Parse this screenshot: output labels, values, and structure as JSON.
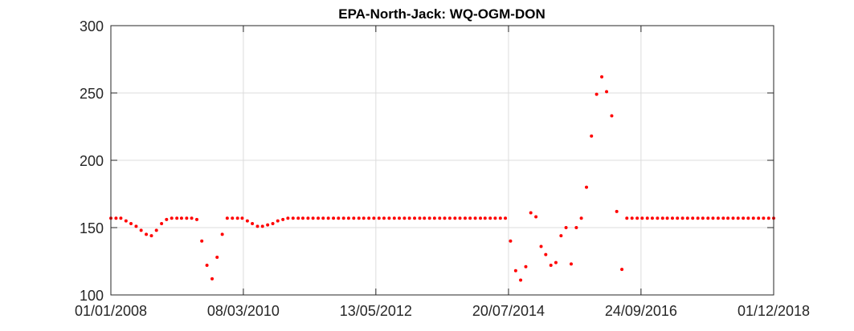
{
  "chart_data": {
    "type": "scatter",
    "title": "EPA-North-Jack: WQ-OGM-DON",
    "xlabel": "",
    "ylabel": "",
    "x_axis_type": "date",
    "xlim": [
      "2008-01-01",
      "2018-12-01"
    ],
    "ylim": [
      100,
      300
    ],
    "x_ticks": [
      "2008-01-01",
      "2010-03-08",
      "2012-05-13",
      "2014-07-20",
      "2016-09-24",
      "2018-12-01"
    ],
    "x_tick_labels": [
      "01/01/2008",
      "08/03/2010",
      "13/05/2012",
      "20/07/2014",
      "24/09/2016",
      "01/12/2018"
    ],
    "y_ticks": [
      100,
      150,
      200,
      250,
      300
    ],
    "y_tick_labels": [
      "100",
      "150",
      "200",
      "250",
      "300"
    ],
    "grid": true,
    "marker_color": "#ff0000",
    "series": [
      {
        "x": [
          "2008-01-01",
          "2008-02-01",
          "2008-03-01",
          "2008-04-01",
          "2008-05-01",
          "2008-06-01",
          "2008-07-01",
          "2008-08-01",
          "2008-09-01",
          "2008-10-01",
          "2008-11-01",
          "2008-12-01",
          "2009-01-01",
          "2009-02-01",
          "2009-03-01",
          "2009-04-01",
          "2009-05-01",
          "2009-06-01",
          "2009-07-01",
          "2009-08-01",
          "2009-09-01",
          "2009-10-01",
          "2009-11-01",
          "2009-12-01",
          "2010-01-01",
          "2010-02-01",
          "2010-03-01",
          "2010-04-01",
          "2010-05-01",
          "2010-06-01",
          "2010-07-01",
          "2010-08-01",
          "2010-09-01",
          "2010-10-01",
          "2010-11-01",
          "2010-12-01",
          "2011-01-01",
          "2011-02-01",
          "2011-03-01",
          "2011-04-01",
          "2011-05-01",
          "2011-06-01",
          "2011-07-01",
          "2011-08-01",
          "2011-09-01",
          "2011-10-01",
          "2011-11-01",
          "2011-12-01",
          "2012-01-01",
          "2012-02-01",
          "2012-03-01",
          "2012-04-01",
          "2012-05-01",
          "2012-06-01",
          "2012-07-01",
          "2012-08-01",
          "2012-09-01",
          "2012-10-01",
          "2012-11-01",
          "2012-12-01",
          "2013-01-01",
          "2013-02-01",
          "2013-03-01",
          "2013-04-01",
          "2013-05-01",
          "2013-06-01",
          "2013-07-01",
          "2013-08-01",
          "2013-09-01",
          "2013-10-01",
          "2013-11-01",
          "2013-12-01",
          "2014-01-01",
          "2014-02-01",
          "2014-03-01",
          "2014-04-01",
          "2014-05-01",
          "2014-06-01",
          "2014-07-01",
          "2014-08-01",
          "2014-09-01",
          "2014-10-01",
          "2014-11-01",
          "2014-12-01",
          "2015-01-01",
          "2015-02-01",
          "2015-03-01",
          "2015-04-01",
          "2015-05-01",
          "2015-06-01",
          "2015-07-01",
          "2015-08-01",
          "2015-09-01",
          "2015-10-01",
          "2015-11-01",
          "2015-12-01",
          "2016-01-01",
          "2016-02-01",
          "2016-03-01",
          "2016-04-01",
          "2016-05-01",
          "2016-06-01",
          "2016-07-01",
          "2016-08-01",
          "2016-09-01",
          "2016-10-01",
          "2016-11-01",
          "2016-12-01",
          "2017-01-01",
          "2017-02-01",
          "2017-03-01",
          "2017-04-01",
          "2017-05-01",
          "2017-06-01",
          "2017-07-01",
          "2017-08-01",
          "2017-09-01",
          "2017-10-01",
          "2017-11-01",
          "2017-12-01",
          "2018-01-01",
          "2018-02-01",
          "2018-03-01",
          "2018-04-01",
          "2018-05-01",
          "2018-06-01",
          "2018-07-01",
          "2018-08-01",
          "2018-09-01",
          "2018-10-01",
          "2018-11-01",
          "2018-12-01"
        ],
        "y": [
          157,
          157,
          157,
          155,
          153,
          151,
          148,
          145,
          144,
          148,
          153,
          156,
          157,
          157,
          157,
          157,
          157,
          156,
          140,
          122,
          112,
          128,
          145,
          157,
          157,
          157,
          157,
          155,
          153,
          151,
          151,
          152,
          153,
          155,
          156,
          157,
          157,
          157,
          157,
          157,
          157,
          157,
          157,
          157,
          157,
          157,
          157,
          157,
          157,
          157,
          157,
          157,
          157,
          157,
          157,
          157,
          157,
          157,
          157,
          157,
          157,
          157,
          157,
          157,
          157,
          157,
          157,
          157,
          157,
          157,
          157,
          157,
          157,
          157,
          157,
          157,
          157,
          157,
          157,
          140,
          118,
          111,
          121,
          161,
          158,
          136,
          130,
          122,
          124,
          144,
          150,
          123,
          150,
          157,
          180,
          218,
          249,
          262,
          251,
          233,
          162,
          119,
          157,
          157,
          157,
          157,
          157,
          157,
          157,
          157,
          157,
          157,
          157,
          157,
          157,
          157,
          157,
          157,
          157,
          157,
          157,
          157,
          157,
          157,
          157,
          157,
          157,
          157,
          157,
          157,
          157,
          157
        ]
      }
    ]
  }
}
